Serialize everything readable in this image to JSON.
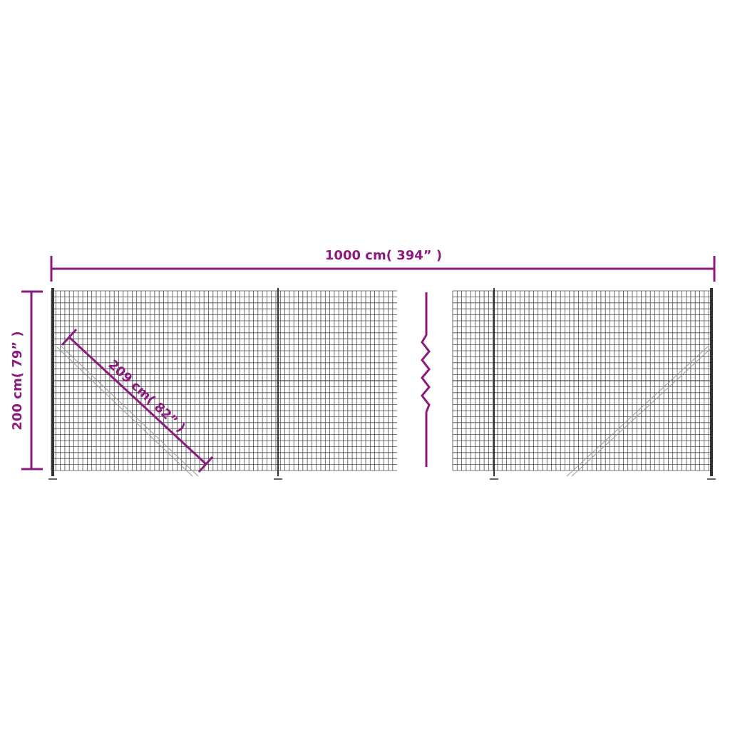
{
  "dimensions": {
    "width_label": "1000 cm( 394”  )",
    "height_label": "200 cm( 79”  )",
    "diagonal_label": "209 cm( 82”  )"
  },
  "colors": {
    "dimension": "#8c1a7f",
    "mesh": "#4a4a4a",
    "post": "#333333",
    "brace": "#9a9a9a"
  }
}
